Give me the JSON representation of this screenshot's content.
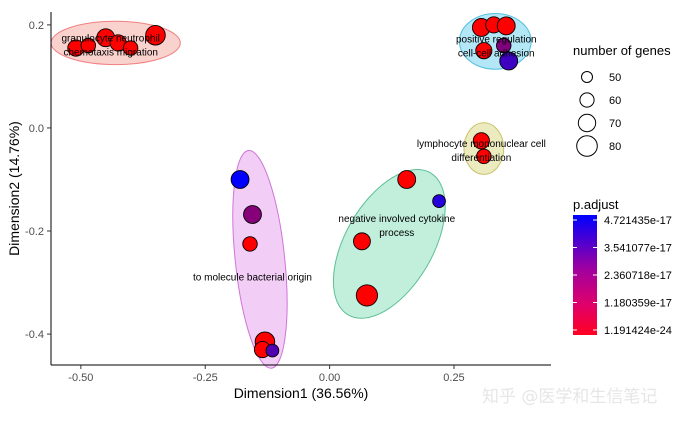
{
  "chart_data": {
    "type": "scatter",
    "xlabel": "Dimension1 (36.56%)",
    "ylabel": "Dimension2 (14.76%)",
    "xlim": [
      -0.56,
      0.445
    ],
    "ylim": [
      -0.46,
      0.225
    ],
    "x_ticks": [
      {
        "value": -0.5,
        "label": "-0.50"
      },
      {
        "value": -0.25,
        "label": "-0.25"
      },
      {
        "value": 0.0,
        "label": "0.00"
      },
      {
        "value": 0.25,
        "label": "0.25"
      }
    ],
    "y_ticks": [
      {
        "value": 0.2,
        "label": "0.2"
      },
      {
        "value": 0.0,
        "label": "0.0"
      },
      {
        "value": -0.2,
        "label": "-0.2"
      },
      {
        "value": -0.4,
        "label": "-0.4"
      }
    ],
    "grid": false,
    "clusters": [
      {
        "label_lines": [
          "granulocyte neutrophil",
          "chemotaxis migration"
        ],
        "fill": "#f8c9c4",
        "stroke": "#f08080",
        "ellipse": {
          "cx": -0.43,
          "cy": 0.165,
          "rx": 0.13,
          "ry": 0.042,
          "angle": 0
        },
        "label_at": [
          -0.44,
          0.16
        ],
        "points": [
          {
            "x": -0.51,
            "y": 0.155,
            "genes": 70,
            "p": 1.19e-24
          },
          {
            "x": -0.485,
            "y": 0.16,
            "genes": 65,
            "p": 1.19e-24
          },
          {
            "x": -0.45,
            "y": 0.175,
            "genes": 75,
            "p": 1.19e-24
          },
          {
            "x": -0.425,
            "y": 0.165,
            "genes": 70,
            "p": 1.19e-24
          },
          {
            "x": -0.4,
            "y": 0.155,
            "genes": 65,
            "p": 1.19e-24
          },
          {
            "x": -0.35,
            "y": 0.18,
            "genes": 80,
            "p": 1.19e-24
          }
        ]
      },
      {
        "label_lines": [
          "positive regulation",
          "cell-cell adhesion"
        ],
        "fill": "#a6e3f5",
        "stroke": "#55c0e0",
        "ellipse": {
          "cx": 0.333,
          "cy": 0.168,
          "rx": 0.072,
          "ry": 0.054,
          "angle": 0
        },
        "label_at": [
          0.335,
          0.158
        ],
        "points": [
          {
            "x": 0.305,
            "y": 0.195,
            "genes": 75,
            "p": 1.19e-24
          },
          {
            "x": 0.33,
            "y": 0.2,
            "genes": 70,
            "p": 1.19e-24
          },
          {
            "x": 0.355,
            "y": 0.198,
            "genes": 75,
            "p": 1.19e-24
          },
          {
            "x": 0.31,
            "y": 0.15,
            "genes": 70,
            "p": 1.19e-24
          },
          {
            "x": 0.35,
            "y": 0.16,
            "genes": 65,
            "p": 1.2e-18
          },
          {
            "x": 0.36,
            "y": 0.13,
            "genes": 75,
            "p": 1e-17
          }
        ]
      },
      {
        "label_lines": [
          "lymphocyte mononuclear cell",
          "differentiation"
        ],
        "fill": "#e9e7b4",
        "stroke": "#c8c26a",
        "ellipse": {
          "cx": 0.31,
          "cy": -0.04,
          "rx": 0.04,
          "ry": 0.05,
          "angle": 0
        },
        "label_at": [
          0.305,
          -0.045
        ],
        "points": [
          {
            "x": 0.305,
            "y": -0.025,
            "genes": 70,
            "p": 1.19e-24
          },
          {
            "x": 0.31,
            "y": -0.055,
            "genes": 65,
            "p": 1.19e-24
          }
        ]
      },
      {
        "label_lines": [
          "negative involved cytokine",
          "process"
        ],
        "fill": "#b6ecd5",
        "stroke": "#5cbf94",
        "ellipse": {
          "cx": 0.12,
          "cy": -0.225,
          "rx": 0.165,
          "ry": 0.085,
          "angle": -60
        },
        "label_at": [
          0.135,
          -0.19
        ],
        "points": [
          {
            "x": 0.155,
            "y": -0.1,
            "genes": 75,
            "p": 1.19e-24
          },
          {
            "x": 0.22,
            "y": -0.142,
            "genes": 60,
            "p": 2e-17
          },
          {
            "x": 0.065,
            "y": -0.22,
            "genes": 72,
            "p": 1.19e-24
          },
          {
            "x": 0.075,
            "y": -0.325,
            "genes": 85,
            "p": 1.19e-24
          }
        ]
      },
      {
        "label_lines": [
          "to molecule bacterial origin"
        ],
        "fill": "#f0c4f5",
        "stroke": "#d075d8",
        "ellipse": {
          "cx": -0.14,
          "cy": -0.255,
          "rx": 0.22,
          "ry": 0.048,
          "angle": 84
        },
        "label_at": [
          -0.155,
          -0.29
        ],
        "points": [
          {
            "x": -0.18,
            "y": -0.1,
            "genes": 75,
            "p": 4.72e-17
          },
          {
            "x": -0.155,
            "y": -0.168,
            "genes": 75,
            "p": 1e-18
          },
          {
            "x": -0.16,
            "y": -0.225,
            "genes": 65,
            "p": 1.19e-24
          },
          {
            "x": -0.13,
            "y": -0.415,
            "genes": 80,
            "p": 1.19e-24
          },
          {
            "x": -0.135,
            "y": -0.43,
            "genes": 70,
            "p": 1.19e-24
          },
          {
            "x": -0.115,
            "y": -0.432,
            "genes": 60,
            "p": 6e-18
          }
        ]
      }
    ],
    "size_legend": {
      "title": "number of genes",
      "entries": [
        {
          "value": 50,
          "label": "50"
        },
        {
          "value": 60,
          "label": "60"
        },
        {
          "value": 70,
          "label": "70"
        },
        {
          "value": 80,
          "label": "80"
        }
      ]
    },
    "color_legend": {
      "title": "p.adjust",
      "labels": [
        "4.721435e-17",
        "3.541077e-17",
        "2.360718e-17",
        "1.180359e-17",
        "1.191424e-24"
      ],
      "gradient_top": "#0000ff",
      "gradient_bottom": "#ff0000"
    },
    "legend_position": "right"
  },
  "watermark": "知乎 @医学和生信笔记"
}
